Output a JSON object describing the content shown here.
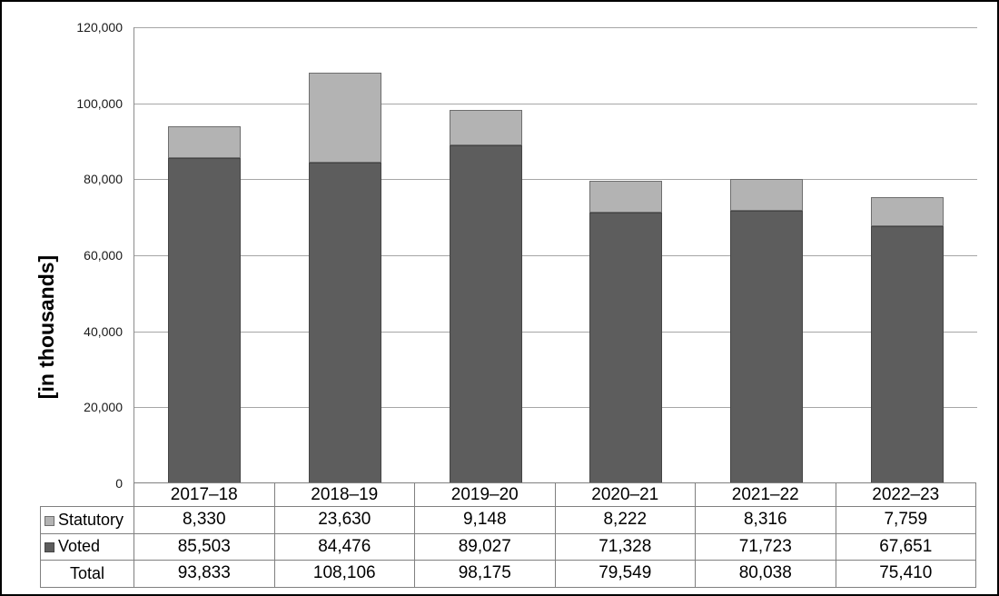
{
  "chart_data": {
    "type": "bar",
    "stacked": true,
    "title": "",
    "xlabel": "",
    "ylabel": "[in thousands]",
    "categories": [
      "2017–18",
      "2018–19",
      "2019–20",
      "2020–21",
      "2021–22",
      "2022–23"
    ],
    "series": [
      {
        "name": "Statutory",
        "values": [
          8330,
          23630,
          9148,
          8222,
          8316,
          7759
        ],
        "color": "#b3b3b3",
        "border_color": "#6e6e6e"
      },
      {
        "name": "Voted",
        "values": [
          85503,
          84476,
          89027,
          71328,
          71723,
          67651
        ],
        "color": "#5d5d5d",
        "border_color": "#454545"
      }
    ],
    "totals": {
      "label": "Total",
      "values": [
        93833,
        108106,
        98175,
        79549,
        80038,
        75410
      ]
    },
    "ylim": [
      0,
      120000
    ],
    "ytick_interval": 20000,
    "ytick_labels": [
      "0",
      "20,000",
      "40,000",
      "60,000",
      "80,000",
      "100,000",
      "120,000"
    ],
    "grid": true,
    "legend_position": "table-row-headers",
    "value_format": "comma-thousands"
  }
}
